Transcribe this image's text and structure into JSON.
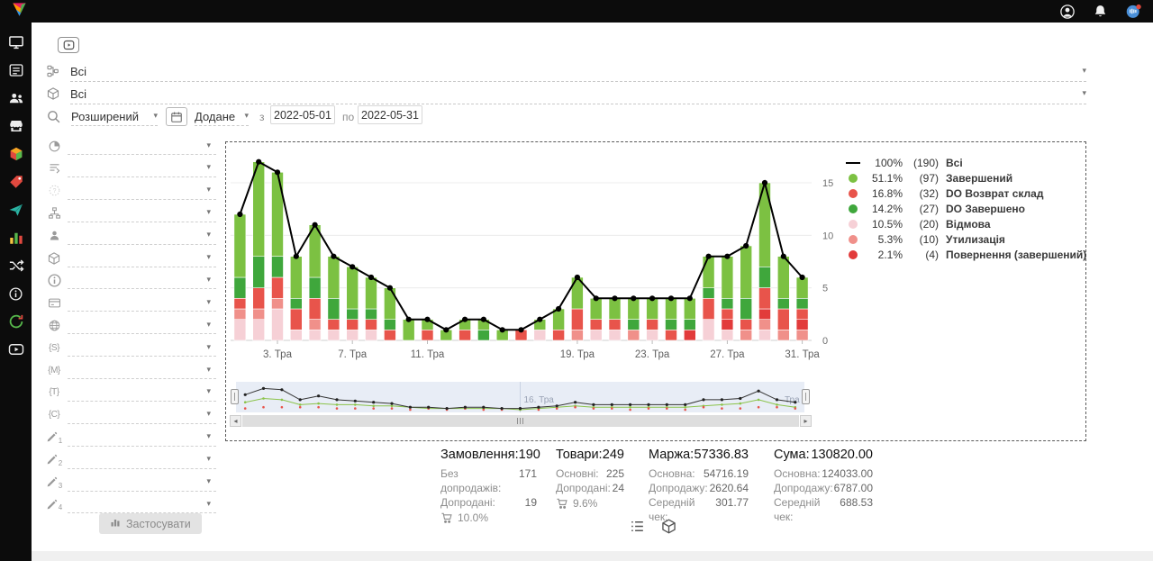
{
  "topbar": {
    "icons": [
      {
        "name": "avatar-icon",
        "svg": "avatar"
      },
      {
        "name": "bell-icon",
        "svg": "bell"
      },
      {
        "name": "intercom-icon",
        "svg": "intercom"
      }
    ]
  },
  "sidebar": {
    "items": [
      {
        "name": "sidebar-item-desktop",
        "icon": "monitor-icon",
        "svg": "monitor"
      },
      {
        "name": "sidebar-item-orders",
        "icon": "list-icon",
        "svg": "list"
      },
      {
        "name": "sidebar-item-clients",
        "icon": "users-icon",
        "svg": "users"
      },
      {
        "name": "sidebar-item-store",
        "icon": "store-icon",
        "svg": "store"
      },
      {
        "name": "sidebar-item-products",
        "icon": "cube-icon",
        "svg": "cube"
      },
      {
        "name": "sidebar-item-offers",
        "icon": "tag-icon",
        "svg": "tag"
      },
      {
        "name": "sidebar-item-messages",
        "icon": "send-icon",
        "svg": "send"
      },
      {
        "name": "sidebar-item-analytics",
        "icon": "chart-icon",
        "svg": "chartColor"
      },
      {
        "name": "sidebar-item-automation",
        "icon": "shuffle-icon",
        "svg": "shuffle"
      },
      {
        "name": "sidebar-item-help",
        "icon": "info-icon",
        "svg": "info"
      },
      {
        "name": "sidebar-item-sync",
        "icon": "refresh-icon",
        "svg": "refresh"
      },
      {
        "name": "sidebar-item-video",
        "icon": "play-icon",
        "svg": "playTube"
      }
    ]
  },
  "filters": {
    "top_selects": [
      {
        "name": "status-group-select",
        "icon": "hierarchy-icon",
        "icon_svg": "hierarchy",
        "value": "Всі"
      },
      {
        "name": "product-select",
        "icon": "package-icon",
        "icon_svg": "package",
        "value": "Всі"
      }
    ],
    "search": {
      "mode_value": "Розширений",
      "date_field_value": "Додане",
      "from_label": "з",
      "date_from": "2022-05-01",
      "to_label": "по",
      "date_to": "2022-05-31"
    },
    "rows": [
      {
        "name": "filter-order-phase",
        "icon": "phase-icon",
        "svg": "phase"
      },
      {
        "name": "filter-order-levels",
        "icon": "levels-icon",
        "svg": "levels"
      },
      {
        "name": "filter-undefined",
        "icon": "question-icon",
        "svg": "question",
        "faded": true
      },
      {
        "name": "filter-structure",
        "icon": "sitemap-icon",
        "svg": "sitemap"
      },
      {
        "name": "filter-operator",
        "icon": "user-icon",
        "svg": "user"
      },
      {
        "name": "filter-product-type",
        "icon": "package-icon",
        "svg": "package"
      },
      {
        "name": "filter-additional-info",
        "icon": "info-icon",
        "svg": "info"
      },
      {
        "name": "filter-payment",
        "icon": "card-icon",
        "svg": "card"
      },
      {
        "name": "filter-site",
        "icon": "globe-icon",
        "svg": "globe"
      },
      {
        "name": "filter-utm-source",
        "icon": "utm-source-icon",
        "glyph": "{S}"
      },
      {
        "name": "filter-utm-medium",
        "icon": "utm-medium-icon",
        "glyph": "{M}"
      },
      {
        "name": "filter-utm-term",
        "icon": "utm-term-icon",
        "glyph": "{T}"
      },
      {
        "name": "filter-utm-campaign",
        "icon": "utm-campaign-icon",
        "glyph": "{C}"
      },
      {
        "name": "filter-custom-field-1",
        "icon": "pencil-1-icon",
        "svg": "pencil",
        "sub": "1"
      },
      {
        "name": "filter-custom-field-2",
        "icon": "pencil-2-icon",
        "svg": "pencil",
        "sub": "2"
      },
      {
        "name": "filter-custom-field-3",
        "icon": "pencil-3-icon",
        "svg": "pencil",
        "sub": "3"
      },
      {
        "name": "filter-custom-field-4",
        "icon": "pencil-4-icon",
        "svg": "pencil",
        "sub": "4"
      }
    ],
    "apply": {
      "label": "Застосувати",
      "icon": "chart-bars-icon"
    }
  },
  "chart_data": {
    "type": "bar",
    "subtype": "stacked-columns-with-total-line",
    "x": [
      1,
      2,
      3,
      4,
      5,
      6,
      7,
      8,
      9,
      10,
      11,
      12,
      13,
      14,
      15,
      16,
      17,
      18,
      19,
      20,
      21,
      22,
      23,
      24,
      25,
      26,
      27,
      28,
      29,
      30,
      31
    ],
    "x_axis_unit": "Тра (травень 2022)",
    "series": [
      {
        "name": "Всі",
        "role": "line",
        "color": "#000000",
        "legend_percent": "100%",
        "count": 190,
        "values": [
          12,
          17,
          16,
          8,
          11,
          8,
          7,
          6,
          5,
          2,
          2,
          1,
          2,
          2,
          1,
          1,
          2,
          3,
          6,
          4,
          4,
          4,
          4,
          4,
          4,
          8,
          8,
          9,
          15,
          8,
          6
        ]
      },
      {
        "name": "Завершений",
        "role": "column",
        "color": "#7cc142",
        "legend_percent": "51.1%",
        "count": 97,
        "values": [
          6,
          9,
          8,
          4,
          5,
          4,
          4,
          3,
          3,
          2,
          1,
          1,
          1,
          1,
          1,
          0,
          1,
          2,
          3,
          2,
          2,
          2,
          2,
          2,
          2,
          3,
          4,
          5,
          8,
          4,
          2
        ]
      },
      {
        "name": "DO Возврат склад",
        "role": "column",
        "color": "#e8544b",
        "legend_percent": "16.8%",
        "count": 32,
        "values": [
          1,
          2,
          2,
          2,
          2,
          1,
          1,
          1,
          1,
          0,
          1,
          0,
          1,
          0,
          0,
          1,
          0,
          1,
          2,
          1,
          1,
          0,
          1,
          1,
          0,
          2,
          1,
          1,
          2,
          2,
          1
        ]
      },
      {
        "name": "DO Завершено",
        "role": "column",
        "color": "#3fa73c",
        "legend_percent": "14.2%",
        "count": 27,
        "values": [
          2,
          3,
          2,
          1,
          2,
          2,
          1,
          1,
          1,
          0,
          0,
          0,
          0,
          1,
          0,
          0,
          0,
          0,
          0,
          0,
          0,
          1,
          0,
          1,
          1,
          1,
          1,
          2,
          2,
          1,
          1
        ]
      },
      {
        "name": "Відмова",
        "role": "column",
        "color": "#f6d0d6",
        "legend_percent": "10.5%",
        "count": 20,
        "values": [
          2,
          2,
          3,
          1,
          1,
          1,
          1,
          1,
          0,
          0,
          0,
          0,
          0,
          0,
          0,
          0,
          1,
          0,
          0,
          1,
          1,
          0,
          1,
          0,
          0,
          2,
          1,
          0,
          1,
          0,
          0
        ]
      },
      {
        "name": "Утилизація",
        "role": "column",
        "color": "#f0908a",
        "legend_percent": "5.3%",
        "count": 10,
        "values": [
          1,
          1,
          1,
          0,
          1,
          0,
          0,
          0,
          0,
          0,
          0,
          0,
          0,
          0,
          0,
          0,
          0,
          0,
          1,
          0,
          0,
          1,
          0,
          0,
          0,
          0,
          0,
          1,
          1,
          1,
          1
        ]
      },
      {
        "name": "Повернення (завершений)",
        "role": "column",
        "color": "#e23b3b",
        "legend_percent": "2.1%",
        "count": 4,
        "values": [
          0,
          0,
          0,
          0,
          0,
          0,
          0,
          0,
          0,
          0,
          0,
          0,
          0,
          0,
          0,
          0,
          0,
          0,
          0,
          0,
          0,
          0,
          0,
          0,
          1,
          0,
          1,
          0,
          1,
          0,
          1
        ]
      }
    ],
    "x_tick_labels": [
      "3. Тра",
      "7. Тра",
      "11. Тра",
      "19. Тра",
      "23. Тра",
      "27. Тра",
      "31. Тра"
    ],
    "x_tick_days": [
      3,
      7,
      11,
      19,
      23,
      27,
      31
    ],
    "y_ticks": [
      0,
      5,
      10,
      15
    ],
    "ylim": [
      0,
      18
    ],
    "legend_position": "right",
    "grid": "horizontal",
    "navigator": {
      "center_label": "16. Тра",
      "right_label": "Тра"
    }
  },
  "summary": {
    "columns": [
      {
        "name": "orders-summary",
        "title": "Замовлення:",
        "value": "190",
        "rows": [
          {
            "label": "Без допродажів:",
            "value": "171"
          },
          {
            "label": "Допродані:",
            "value": "19"
          }
        ],
        "upsell_percent": "10.0%"
      },
      {
        "name": "items-summary",
        "title": "Товари:",
        "value": "249",
        "rows": [
          {
            "label": "Основні:",
            "value": "225"
          },
          {
            "label": "Допродані:",
            "value": "24"
          }
        ],
        "upsell_percent": "9.6%"
      },
      {
        "name": "margin-summary",
        "title": "Маржа:",
        "value": "57336.83",
        "rows": [
          {
            "label": "Основна:",
            "value": "54716.19"
          },
          {
            "label": "Допродажу:",
            "value": "2620.64"
          },
          {
            "label": "Середній чек:",
            "value": "301.77"
          }
        ]
      },
      {
        "name": "sum-summary",
        "title": "Сума:",
        "value": "130820.00",
        "rows": [
          {
            "label": "Основна:",
            "value": "124033.00"
          },
          {
            "label": "Допродажу:",
            "value": "6787.00"
          },
          {
            "label": "Середній чек:",
            "value": "688.53"
          }
        ]
      }
    ]
  },
  "footer": {
    "icons": [
      {
        "name": "list-view-icon",
        "svg": "listView"
      },
      {
        "name": "package-view-icon",
        "svg": "packageBig"
      }
    ]
  }
}
